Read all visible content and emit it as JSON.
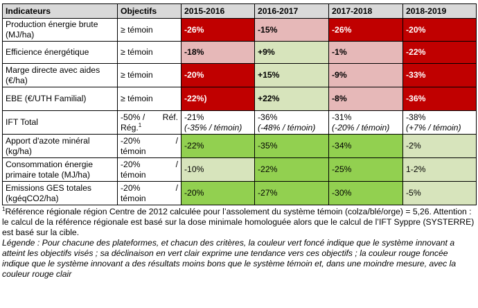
{
  "table": {
    "headers": [
      "Indicateurs",
      "Objectifs",
      "2015-2016",
      "2016-2017",
      "2017-2018",
      "2018-2019"
    ],
    "rows": [
      {
        "indicator": [
          "Production énergie brute",
          "(MJ/ha)"
        ],
        "objective": [
          "≥ témoin"
        ],
        "cells": [
          {
            "value": "-26%",
            "color": "dark-red"
          },
          {
            "value": "-15%",
            "color": "light-red"
          },
          {
            "value": "-26%",
            "color": "dark-red"
          },
          {
            "value": "-20%",
            "color": "dark-red"
          }
        ]
      },
      {
        "indicator": [
          "Efficience énergétique"
        ],
        "objective": [
          "≥ témoin"
        ],
        "cells": [
          {
            "value": "-18%",
            "color": "light-red"
          },
          {
            "value": "+9%",
            "color": "light-green"
          },
          {
            "value": "-1%",
            "color": "light-red"
          },
          {
            "value": "-22%",
            "color": "dark-red"
          }
        ]
      },
      {
        "indicator": [
          "Marge directe avec aides",
          "(€/ha)"
        ],
        "objective": [
          "≥ témoin"
        ],
        "cells": [
          {
            "value": "-20%",
            "color": "dark-red"
          },
          {
            "value": "+15%",
            "color": "light-green"
          },
          {
            "value": "-9%",
            "color": "light-red"
          },
          {
            "value": "-33%",
            "color": "dark-red"
          }
        ]
      },
      {
        "indicator": [
          "EBE (€/UTH Familial)"
        ],
        "objective": [
          "≥ témoin"
        ],
        "cells": [
          {
            "value": "-22%)",
            "color": "dark-red"
          },
          {
            "value": "+22%",
            "color": "light-green"
          },
          {
            "value": "-8%",
            "color": "light-red"
          },
          {
            "value": "-36%",
            "color": "dark-red"
          }
        ]
      }
    ],
    "ift": {
      "indicator": "IFT Total",
      "objective_left": "-50%  /",
      "objective_right": "Réf.",
      "objective_line2": "Rég.",
      "objective_note": "1",
      "cells": [
        {
          "value": "-21%",
          "sub": "(-35% / témoin)"
        },
        {
          "value": "-36%",
          "sub": "(-48% / témoin)"
        },
        {
          "value": "-31%",
          "sub": "(-20% / témoin)"
        },
        {
          "value": "-38%",
          "sub": "(+7% / témoin)"
        }
      ]
    },
    "rows2": [
      {
        "indicator": [
          "Apport d'azote minéral",
          "(kg/ha)"
        ],
        "objective": [
          "-20%",
          "témoin"
        ],
        "cells": [
          {
            "value": "-22%",
            "color": "dark-green"
          },
          {
            "value": "-35%",
            "color": "dark-green"
          },
          {
            "value": "-34%",
            "color": "dark-green"
          },
          {
            "value": "-2%",
            "color": "light-green"
          }
        ]
      },
      {
        "indicator": [
          "Consommation énergie",
          "primaire totale (MJ/ha)"
        ],
        "objective": [
          "-20%",
          "témoin"
        ],
        "cells": [
          {
            "value": "-10%",
            "color": "light-green"
          },
          {
            "value": "-22%",
            "color": "dark-green"
          },
          {
            "value": "-25%",
            "color": "dark-green"
          },
          {
            "value": "1-2%",
            "color": "light-green"
          }
        ]
      },
      {
        "indicator": [
          "Emissions GES totales",
          "(kgéqCO2/ha)"
        ],
        "objective": [
          "-20%",
          "témoin"
        ],
        "cells": [
          {
            "value": "-20%",
            "color": "dark-green"
          },
          {
            "value": "-27%",
            "color": "dark-green"
          },
          {
            "value": "-30%",
            "color": "dark-green"
          },
          {
            "value": "-5%",
            "color": "light-green"
          }
        ]
      }
    ]
  },
  "notes": {
    "footnote_mark": "1",
    "footnote_text": "Référence régionale région Centre de 2012 calculée pour l’assolement du système témoin (colza/blé/orge) = 5,26. Attention : le calcul de la référence régionale est basé sur la dose minimale homologuée alors que le calcul de l’IFT Syppre (SYSTERRE) est basé sur la cible.",
    "legend_text": "Légende : Pour chacune des plateformes, et chacun des critères, la couleur vert foncé indique que le système innovant a atteint les objectifs visés ; sa déclinaison en vert clair exprime une tendance vers ces objectifs ; la couleur rouge foncée indique que le système innovant a des résultats moins bons que le système témoin et, dans une moindre mesure, avec la couleur rouge clair"
  },
  "colors": {
    "dark-red": "#c00000",
    "light-red": "#e6b8b8",
    "light-green": "#d7e4bc",
    "dark-green": "#92d050",
    "header": "#d9d9d9"
  }
}
